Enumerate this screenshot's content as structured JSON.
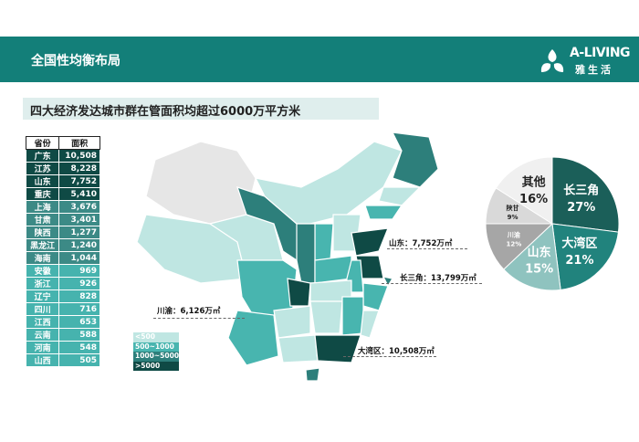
{
  "header": {
    "title": "全国性均衡布局",
    "logo_en": "A-LIVING",
    "logo_cn": "雅生活"
  },
  "subtitle": "四大经济发达城市群在管面积均超过6000万平方米",
  "table": {
    "headers": [
      "省份",
      "面积"
    ],
    "rows": [
      [
        "广东",
        "10,508"
      ],
      [
        "江苏",
        "8,228"
      ],
      [
        "山东",
        "7,752"
      ],
      [
        "重庆",
        "5,410"
      ],
      [
        "上海",
        "3,676"
      ],
      [
        "甘肃",
        "3,401"
      ],
      [
        "陕西",
        "1,277"
      ],
      [
        "黑龙江",
        "1,240"
      ],
      [
        "海南",
        "1,044"
      ],
      [
        "安徽",
        "969"
      ],
      [
        "浙江",
        "926"
      ],
      [
        "辽宁",
        "828"
      ],
      [
        "四川",
        "716"
      ],
      [
        "江西",
        "653"
      ],
      [
        "云南",
        "588"
      ],
      [
        "河南",
        "548"
      ],
      [
        "山西",
        "505"
      ]
    ]
  },
  "legend": [
    {
      "label": "<500",
      "color": "#bfe6e2"
    },
    {
      "label": "500~1000",
      "color": "#48b5af"
    },
    {
      "label": "1000~5000",
      "color": "#2d7f7b"
    },
    {
      "label": ">5000",
      "color": "#0f4a45"
    }
  ],
  "map_labels": {
    "shandong": "山东：7,752万㎡",
    "csj": "长三角：13,799万㎡",
    "chuanyu": "川渝：6,126万㎡",
    "dwq": "大湾区：10,508万㎡"
  },
  "chart_data": {
    "type": "pie",
    "slices": [
      {
        "label": "长三角",
        "value": 27,
        "color": "#1b5f59"
      },
      {
        "label": "大湾区",
        "value": 21,
        "color": "#21837d"
      },
      {
        "label": "山东",
        "value": 15,
        "color": "#8fc3bf"
      },
      {
        "label": "川渝",
        "value": 12,
        "color": "#a6a6a6"
      },
      {
        "label": "陕甘",
        "value": 9,
        "color": "#d9d9d9"
      },
      {
        "label": "其他",
        "value": 16,
        "color": "#f0f0f0"
      }
    ]
  }
}
